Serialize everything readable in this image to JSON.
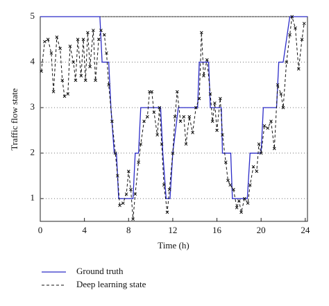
{
  "chart_data": {
    "type": "line",
    "xlabel": "Time (h)",
    "ylabel": "Traffic flow state",
    "xlim": [
      0,
      24.2
    ],
    "ylim": [
      0.5,
      5
    ],
    "xticks": [
      0,
      4,
      8,
      12,
      16,
      20,
      24
    ],
    "yticks": [
      1,
      2,
      3,
      4,
      5
    ],
    "grid": true,
    "legend": "below",
    "series": [
      {
        "name": "Ground truth",
        "color": "#2b2bc8",
        "dash": false,
        "x": [
          0,
          5.4,
          5.6,
          6.2,
          6.4,
          6.7,
          6.9,
          7.1,
          8.4,
          8.6,
          8.9,
          9.1,
          10.9,
          11.1,
          11.4,
          11.75,
          12.0,
          12.5,
          14.25,
          14.4,
          15.25,
          15.4,
          16.4,
          16.5,
          17.25,
          17.4,
          18.75,
          19.0,
          20.0,
          20.2,
          21.4,
          21.6,
          22.0,
          22.6,
          24.2
        ],
        "values": [
          5,
          5,
          4,
          4,
          3,
          2,
          2,
          1,
          1,
          2,
          2,
          3,
          3,
          2,
          1,
          1,
          2,
          3,
          3,
          4,
          4,
          3,
          3,
          2,
          2,
          1,
          1,
          2,
          2,
          3,
          3,
          4,
          4,
          5,
          5
        ]
      },
      {
        "name": "Deep learning state",
        "color": "#111111",
        "dash": true,
        "x": [
          0.1,
          0.4,
          0.7,
          1.0,
          1.2,
          1.5,
          1.8,
          2.0,
          2.2,
          2.5,
          2.7,
          3.0,
          3.2,
          3.4,
          3.7,
          3.9,
          4.1,
          4.3,
          4.5,
          4.8,
          5.0,
          5.3,
          5.5,
          5.8,
          6.0,
          6.2,
          6.5,
          6.8,
          7.0,
          7.2,
          7.5,
          7.8,
          8.0,
          8.2,
          8.4,
          8.6,
          8.9,
          9.1,
          9.4,
          9.7,
          9.9,
          10.1,
          10.3,
          10.6,
          10.8,
          11.0,
          11.2,
          11.5,
          11.7,
          12.0,
          12.2,
          12.4,
          12.7,
          13.0,
          13.2,
          13.5,
          13.8,
          14.1,
          14.4,
          14.6,
          14.8,
          15.1,
          15.4,
          15.6,
          15.8,
          16.0,
          16.3,
          16.5,
          16.8,
          17.0,
          17.2,
          17.5,
          17.8,
          18.0,
          18.2,
          18.5,
          18.8,
          19.0,
          19.3,
          19.6,
          19.8,
          20.0,
          20.3,
          20.6,
          20.9,
          21.2,
          21.5,
          21.8,
          22.0,
          22.3,
          22.6,
          22.8,
          23.1,
          23.4,
          23.7,
          23.9
        ],
        "values": [
          3.8,
          4.45,
          4.5,
          4.2,
          3.35,
          4.55,
          4.3,
          3.6,
          3.25,
          3.3,
          4.35,
          4.0,
          3.6,
          4.5,
          3.7,
          4.5,
          3.6,
          4.65,
          3.9,
          4.7,
          3.6,
          4.5,
          4.7,
          4.6,
          4.2,
          3.5,
          2.7,
          2.0,
          1.5,
          0.85,
          0.9,
          1.1,
          1.6,
          1.2,
          0.55,
          1.1,
          1.8,
          2.2,
          2.7,
          2.8,
          3.35,
          3.35,
          2.9,
          2.4,
          3.0,
          2.2,
          1.3,
          0.7,
          1.2,
          2.0,
          2.8,
          3.35,
          2.7,
          2.8,
          2.2,
          2.8,
          2.45,
          3.0,
          3.2,
          4.65,
          3.7,
          4.05,
          3.3,
          2.7,
          3.1,
          2.5,
          3.2,
          2.4,
          1.8,
          1.4,
          1.3,
          1.2,
          0.8,
          0.95,
          0.7,
          1.0,
          0.9,
          1.3,
          1.7,
          1.6,
          2.2,
          2.0,
          2.6,
          2.55,
          2.7,
          2.1,
          3.5,
          3.3,
          3.0,
          4.0,
          4.6,
          5.0,
          4.75,
          3.85,
          4.5,
          4.85
        ]
      }
    ]
  }
}
